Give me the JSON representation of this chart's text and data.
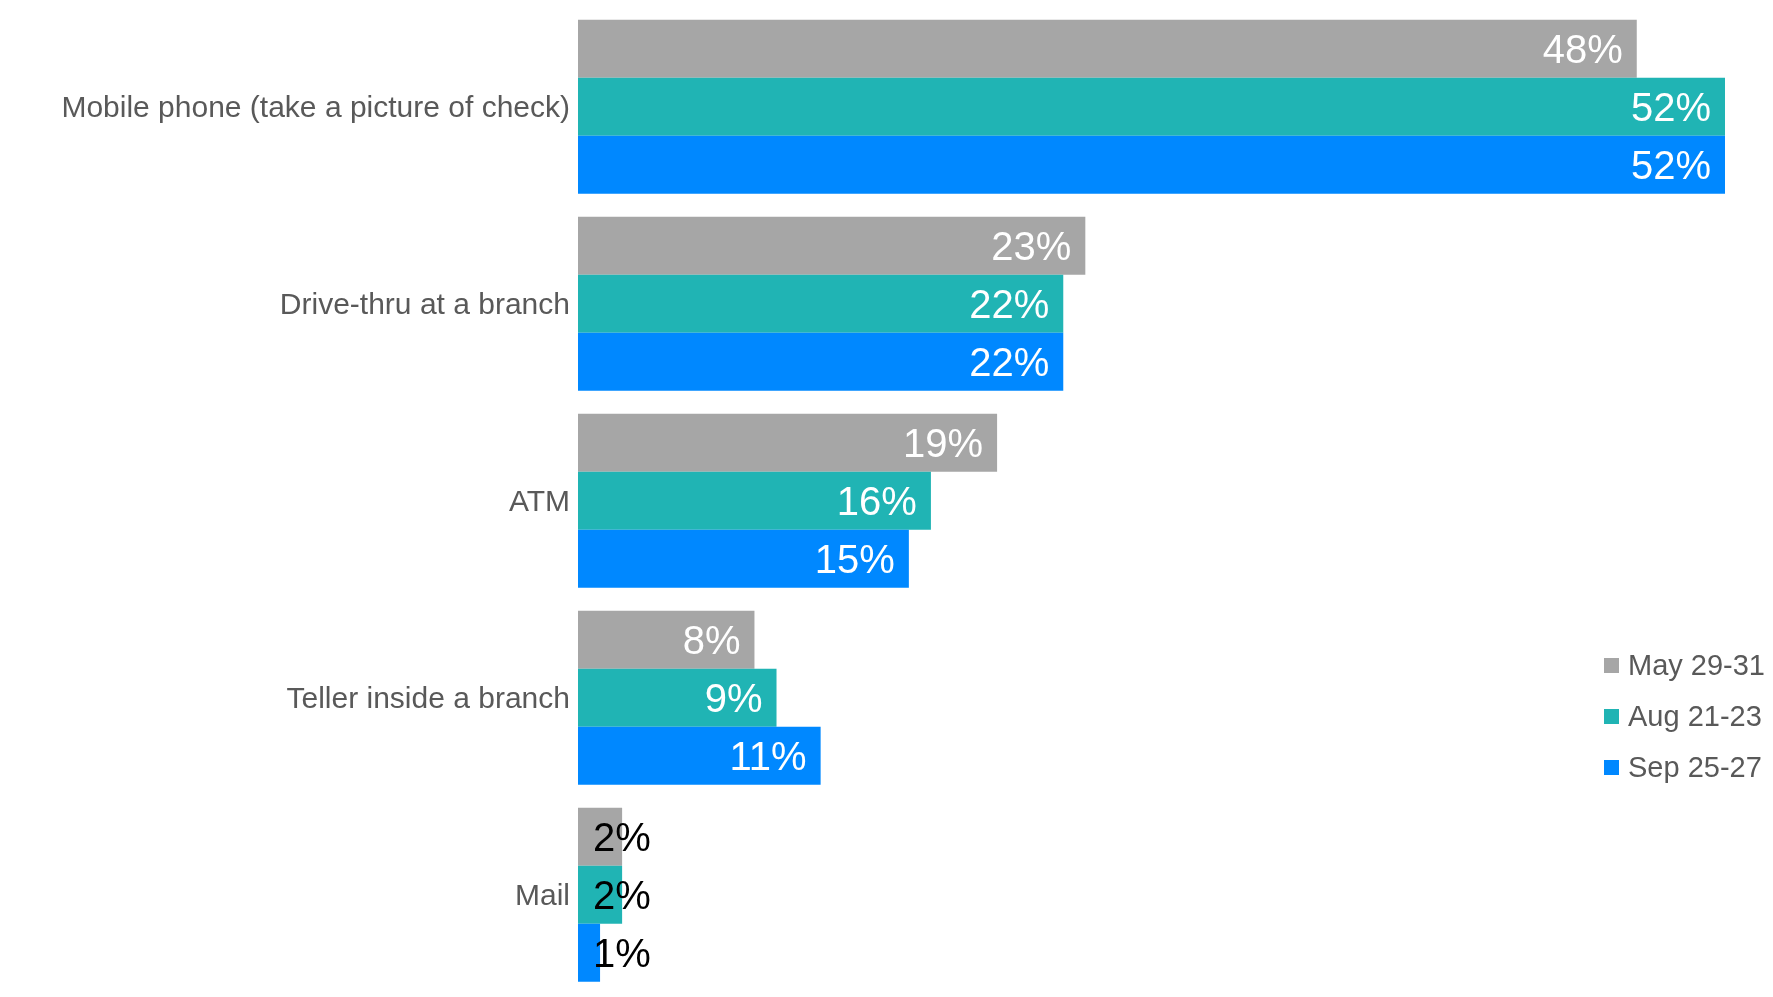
{
  "chart_data": {
    "type": "bar",
    "orientation": "horizontal",
    "categories": [
      "Mobile phone (take a picture of check)",
      "Drive-thru at a branch",
      "ATM",
      "Teller inside a branch",
      "Mail"
    ],
    "series": [
      {
        "name": "May 29-31",
        "color": "#a6a6a6",
        "values": [
          48,
          23,
          19,
          8,
          2
        ],
        "value_labels": [
          "48%",
          "23%",
          "19%",
          "8%",
          "2%"
        ]
      },
      {
        "name": "Aug 21-23",
        "color": "#20b4b4",
        "values": [
          52,
          22,
          16,
          9,
          2
        ],
        "value_labels": [
          "52%",
          "22%",
          "16%",
          "9%",
          "2%"
        ]
      },
      {
        "name": "Sep 25-27",
        "color": "#0088ff",
        "values": [
          52,
          22,
          15,
          11,
          1
        ],
        "value_labels": [
          "52%",
          "22%",
          "15%",
          "11%",
          "1%"
        ]
      }
    ],
    "legend": "bottom right",
    "grid": false
  }
}
